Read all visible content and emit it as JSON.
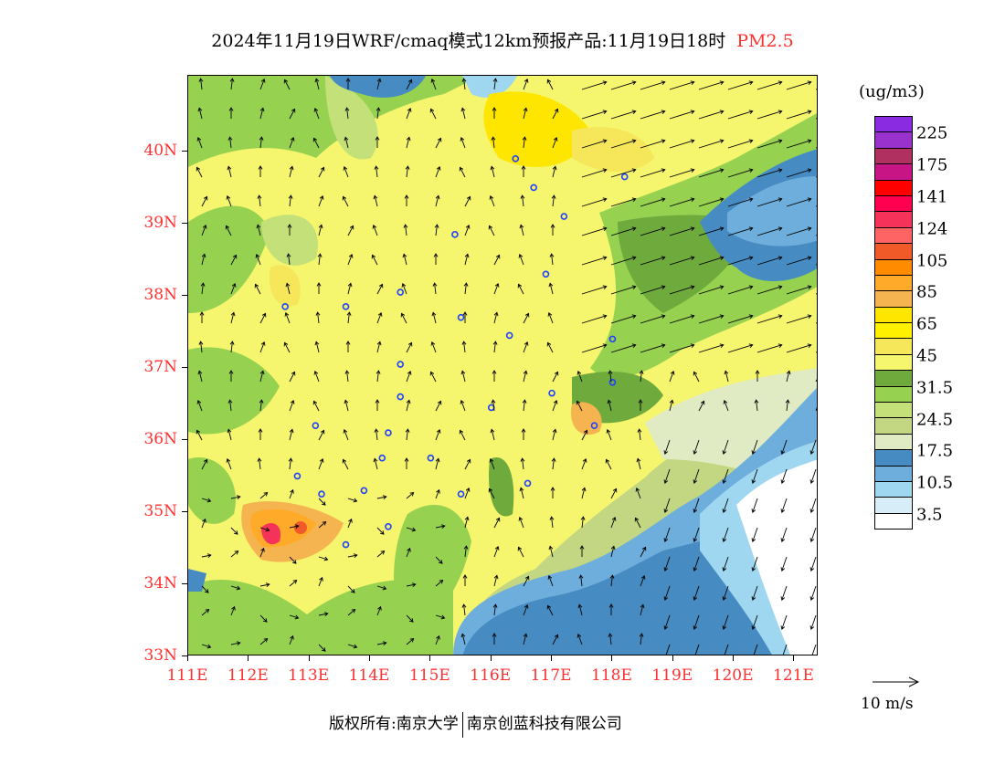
{
  "title": "2024年11月19日WRF/cmaq模式12km预报产品:11月19日18时",
  "pollutant": "PM2.5",
  "pollutant_color": "#ff3030",
  "map": {
    "lat_ticks": [
      "40N",
      "39N",
      "38N",
      "37N",
      "36N",
      "35N",
      "34N",
      "33N"
    ],
    "lat_values": [
      40,
      39,
      38,
      37,
      36,
      35,
      34,
      33
    ],
    "lon_ticks": [
      "111E",
      "112E",
      "113E",
      "114E",
      "115E",
      "116E",
      "117E",
      "118E",
      "119E",
      "120E",
      "121E"
    ],
    "lon_values": [
      111,
      112,
      113,
      114,
      115,
      116,
      117,
      118,
      119,
      120,
      121
    ],
    "lon_range": [
      111,
      121.4
    ],
    "lat_range": [
      33,
      41.05
    ],
    "hotspot": {
      "lon": 112.4,
      "lat": 34.6
    },
    "cities": [
      [
        116.4,
        39.9
      ],
      [
        116.7,
        39.5
      ],
      [
        117.2,
        39.1
      ],
      [
        118.2,
        39.65
      ],
      [
        115.4,
        38.85
      ],
      [
        116.9,
        38.3
      ],
      [
        112.6,
        37.85
      ],
      [
        113.6,
        37.85
      ],
      [
        114.5,
        38.05
      ],
      [
        115.5,
        37.7
      ],
      [
        116.3,
        37.45
      ],
      [
        118.0,
        37.4
      ],
      [
        114.5,
        37.05
      ],
      [
        114.5,
        36.6
      ],
      [
        117.0,
        36.65
      ],
      [
        118.0,
        36.8
      ],
      [
        116.0,
        36.45
      ],
      [
        113.1,
        36.2
      ],
      [
        114.3,
        36.1
      ],
      [
        114.2,
        35.75
      ],
      [
        115.0,
        35.75
      ],
      [
        112.8,
        35.5
      ],
      [
        113.2,
        35.25
      ],
      [
        113.9,
        35.3
      ],
      [
        115.5,
        35.25
      ],
      [
        116.6,
        35.4
      ],
      [
        114.3,
        34.8
      ],
      [
        113.6,
        34.55
      ],
      [
        117.7,
        36.2
      ]
    ]
  },
  "legend": {
    "unit": "(ug/m3)",
    "colors": [
      "#8a2be2",
      "#9932cc",
      "#b03060",
      "#c71585",
      "#ff0000",
      "#ff0050",
      "#f5325a",
      "#ff6464",
      "#f05a28",
      "#ff8c00",
      "#ffaa28",
      "#f5b450",
      "#ffe600",
      "#fff000",
      "#f5e65a",
      "#f5f56e",
      "#6eaa3c",
      "#96d250",
      "#c3e178",
      "#c3d782",
      "#e1ebc3",
      "#468cc3",
      "#6eaedc",
      "#a0d7f0",
      "#d7eef8",
      "#ffffff"
    ],
    "labels": [
      "225",
      "175",
      "141",
      "124",
      "105",
      "85",
      "65",
      "45",
      "31.5",
      "24.5",
      "17.5",
      "10.5",
      "3.5"
    ]
  },
  "wind_vector": {
    "label": "10 m/s"
  },
  "footer": {
    "copyright": "版权所有:南京大学",
    "company": "南京创蓝科技有限公司"
  }
}
